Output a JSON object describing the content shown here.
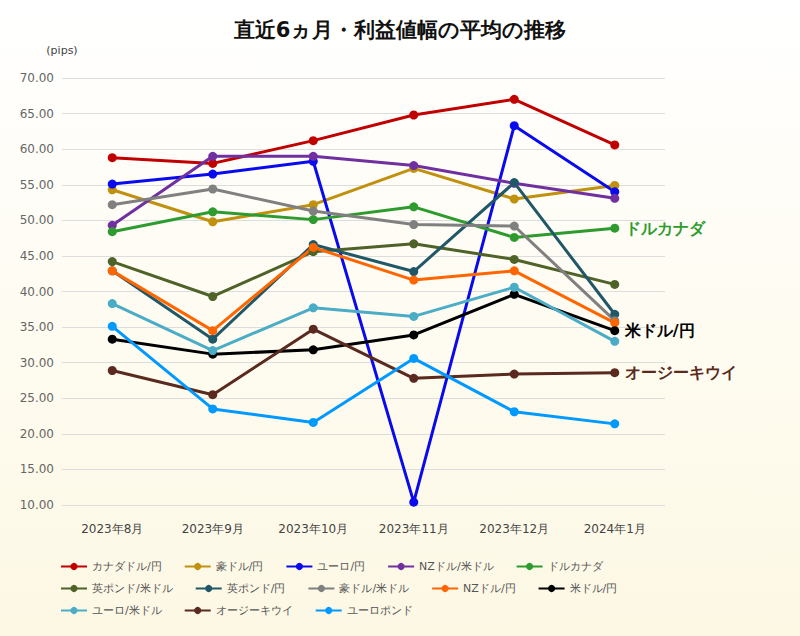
{
  "chart_data": {
    "type": "line",
    "title": "直近6ヵ月・利益値幅の平均の推移",
    "y_label": "(pips)",
    "categories": [
      "2023年8月",
      "2023年9月",
      "2023年10月",
      "2023年11月",
      "2023年12月",
      "2024年1月"
    ],
    "series": [
      {
        "name": "カナダドル/円",
        "color": "#c00000",
        "values": [
          58.8,
          58.0,
          61.2,
          64.8,
          67.0,
          60.6
        ]
      },
      {
        "name": "豪ドル/円",
        "color": "#c0900f",
        "values": [
          54.3,
          49.8,
          52.2,
          57.3,
          53.0,
          54.9
        ]
      },
      {
        "name": "ユーロ/円",
        "color": "#0a0aee",
        "values": [
          55.1,
          56.5,
          58.3,
          10.4,
          63.3,
          54.0
        ]
      },
      {
        "name": "NZドル/米ドル",
        "color": "#7030a0",
        "values": [
          49.3,
          59.0,
          59.0,
          57.7,
          55.2,
          53.1
        ]
      },
      {
        "name": "ドルカナダ",
        "color": "#2e9b2e",
        "values": [
          48.4,
          51.2,
          50.1,
          51.9,
          47.6,
          48.9
        ]
      },
      {
        "name": "英ポンド/米ドル",
        "color": "#4f6228",
        "values": [
          44.2,
          39.3,
          45.6,
          46.7,
          44.5,
          41.0
        ]
      },
      {
        "name": "英ポンド/円",
        "color": "#215868",
        "values": [
          42.9,
          33.3,
          46.6,
          42.8,
          55.3,
          36.8
        ]
      },
      {
        "name": "豪ドル/米ドル",
        "color": "#808080",
        "values": [
          52.2,
          54.4,
          51.3,
          49.4,
          49.2,
          35.9
        ]
      },
      {
        "name": "NZドル/円",
        "color": "#ff6600",
        "values": [
          42.9,
          34.5,
          46.2,
          41.6,
          42.9,
          35.6
        ]
      },
      {
        "name": "米ドル/円",
        "color": "#000000",
        "values": [
          33.3,
          31.2,
          31.8,
          33.9,
          39.6,
          34.5
        ]
      },
      {
        "name": "ユーロ/米ドル",
        "color": "#4bacc6",
        "values": [
          38.3,
          31.7,
          37.7,
          36.5,
          40.6,
          33.0
        ]
      },
      {
        "name": "オージーキウイ",
        "color": "#5a2a1e",
        "values": [
          28.9,
          25.5,
          34.7,
          27.8,
          28.4,
          28.6
        ]
      },
      {
        "name": "ユーロポンド",
        "color": "#0099ff",
        "values": [
          35.1,
          23.5,
          21.6,
          30.6,
          23.1,
          21.4
        ]
      }
    ],
    "annotations": [
      {
        "text": "ドルカナダ",
        "series": "ドルカナダ"
      },
      {
        "text": "米ドル/円",
        "series": "米ドル/円"
      },
      {
        "text": "オージーキウイ",
        "series": "オージーキウイ"
      }
    ],
    "ylim": [
      10,
      70
    ],
    "yticks": [
      {
        "value": 10,
        "label": "10.00"
      },
      {
        "value": 15,
        "label": "15.00"
      },
      {
        "value": 20,
        "label": "20.00"
      },
      {
        "value": 25,
        "label": "25.00"
      },
      {
        "value": 30,
        "label": "30.00"
      },
      {
        "value": 35,
        "label": "35.00"
      },
      {
        "value": 40,
        "label": "40.00"
      },
      {
        "value": 45,
        "label": "45.00"
      },
      {
        "value": 50,
        "label": "50.00"
      },
      {
        "value": 55,
        "label": "55.00"
      },
      {
        "value": 60,
        "label": "60.00"
      },
      {
        "value": 65,
        "label": "65.00"
      },
      {
        "value": 70,
        "label": "70.00"
      }
    ],
    "grid": true,
    "legend": "bottom",
    "marker": "circle"
  }
}
